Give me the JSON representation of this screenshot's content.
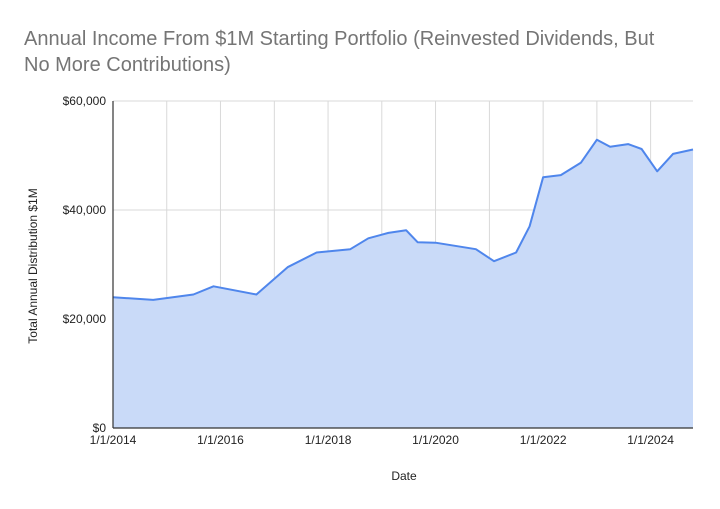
{
  "chart_data": {
    "type": "area",
    "title_lines": [
      "Annual Income From $1M Starting Portfolio (Reinvested Dividends, But",
      "No More Contributions)"
    ],
    "xlabel": "Date",
    "ylabel": "Total Annual Distribution $1M",
    "ylim": [
      0,
      60000
    ],
    "yticks": [
      0,
      20000,
      40000,
      60000
    ],
    "ytick_labels": [
      "$0",
      "$20,000",
      "$40,000",
      "$60,000"
    ],
    "xlim": [
      "2014-01-01",
      "2024-10-15"
    ],
    "xticks": [
      "2014-01-01",
      "2016-01-01",
      "2018-01-01",
      "2020-01-01",
      "2022-01-01",
      "2024-01-01"
    ],
    "xtick_labels": [
      "1/1/2014",
      "1/1/2016",
      "1/1/2018",
      "1/1/2020",
      "1/1/2022",
      "1/1/2024"
    ],
    "grid": true,
    "legend": "none",
    "series": [
      {
        "x": [
          "2014-01-01",
          "2014-10-01",
          "2015-07-01",
          "2015-11-15",
          "2016-09-01",
          "2017-04-01",
          "2017-10-15",
          "2018-06-01",
          "2018-10-01",
          "2019-02-15",
          "2019-06-15",
          "2019-09-01",
          "2020-01-01",
          "2020-10-01",
          "2021-02-01",
          "2021-07-01",
          "2021-10-01",
          "2022-01-01",
          "2022-05-01",
          "2022-09-15",
          "2023-01-01",
          "2023-04-01",
          "2023-08-01",
          "2023-11-01",
          "2024-02-15",
          "2024-06-01",
          "2024-10-15"
        ],
        "values": [
          24000,
          23500,
          24500,
          26000,
          24500,
          29500,
          32200,
          32800,
          34800,
          35800,
          36300,
          34100,
          34000,
          32800,
          30600,
          32200,
          37000,
          46000,
          46400,
          48700,
          52900,
          51600,
          52100,
          51200,
          47100,
          50300,
          51100
        ]
      }
    ],
    "colors": {
      "line": "#4f86ec",
      "fill": "#c9daf8",
      "grid": "#d9d9d9",
      "axis": "#333333",
      "title": "#757575"
    }
  }
}
